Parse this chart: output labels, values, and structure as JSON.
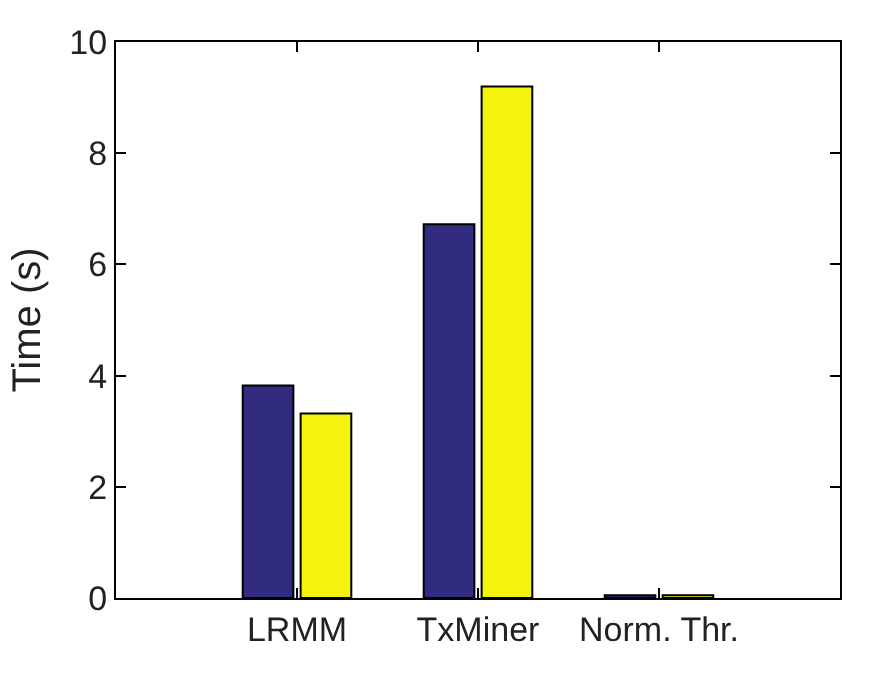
{
  "chart_data": {
    "type": "bar",
    "ylabel": "Time (s)",
    "categories": [
      "LRMM",
      "TxMiner",
      "Norm. Thr."
    ],
    "series": [
      {
        "color": "#312c80",
        "values": [
          3.82,
          6.72,
          0.05
        ]
      },
      {
        "color": "#f4f40c",
        "values": [
          3.32,
          9.2,
          0.05
        ]
      }
    ],
    "ylim": [
      0,
      10
    ],
    "yticks": [
      0,
      2,
      4,
      6,
      8,
      10
    ],
    "legend": false
  }
}
